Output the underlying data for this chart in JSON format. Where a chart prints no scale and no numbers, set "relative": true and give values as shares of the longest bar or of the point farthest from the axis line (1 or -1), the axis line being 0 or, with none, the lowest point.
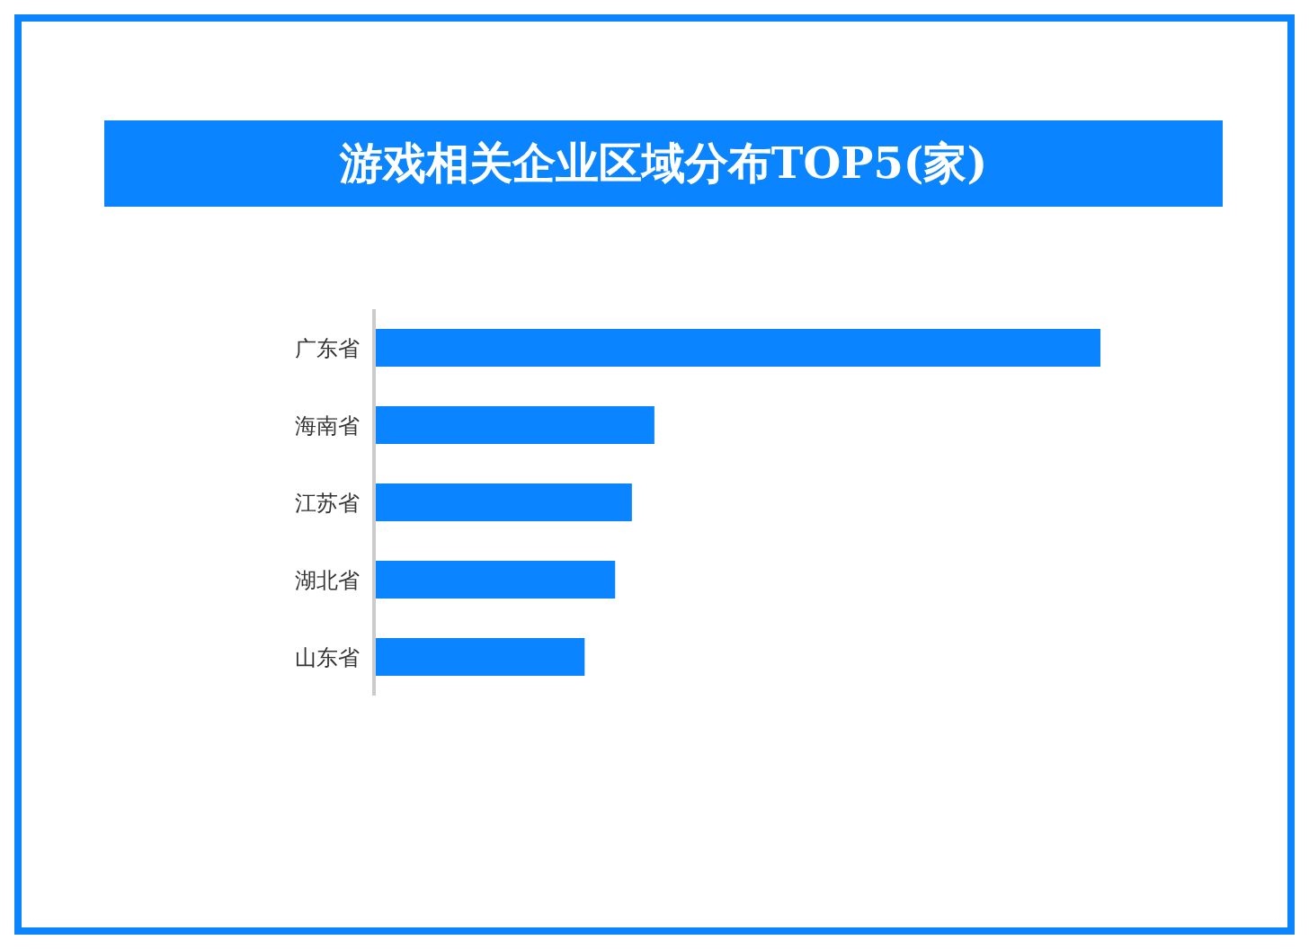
{
  "chart_data": {
    "type": "bar",
    "orientation": "horizontal",
    "relative": true,
    "title": "游戏相关企业区域分布TOP5(家)",
    "categories": [
      "广东省",
      "海南省",
      "江苏省",
      "湖北省",
      "山东省"
    ],
    "values": [
      1,
      0.386,
      0.355,
      0.332,
      0.29
    ],
    "color": "#0a84ff",
    "grid": false,
    "legend": false
  }
}
